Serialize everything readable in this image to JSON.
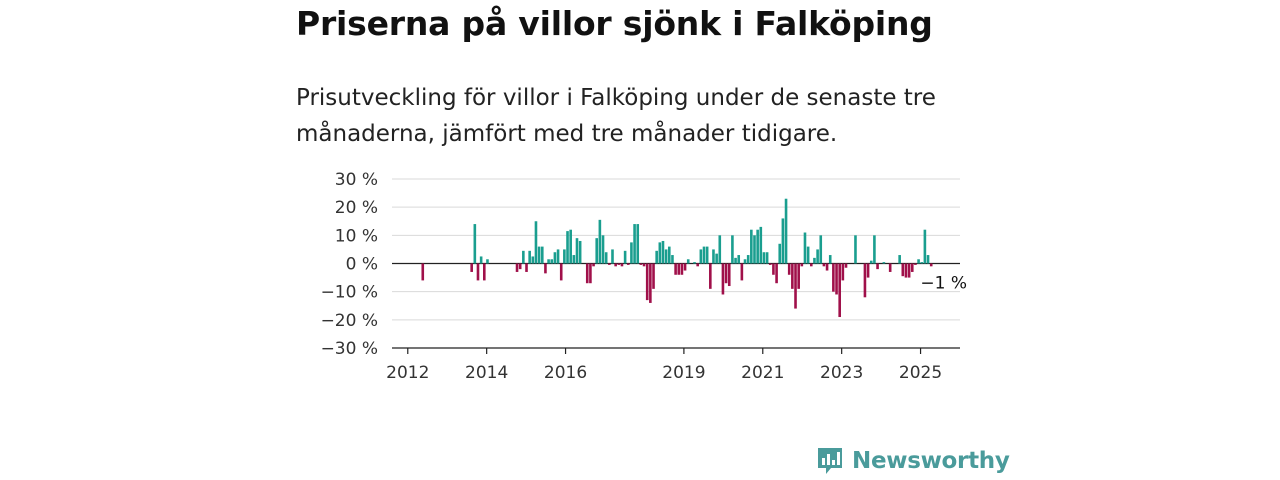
{
  "header": {
    "title": "Priserna på villor sjönk i Falköping",
    "subtitle": "Prisutveckling för villor i Falköping under de senaste tre månaderna, jämfört med tre månader tidigare."
  },
  "brand": {
    "name": "Newsworthy",
    "icon": "newsworthy-logo-icon",
    "color": "#4a9b9b"
  },
  "chart_data": {
    "type": "bar",
    "title": "",
    "xlabel": "",
    "ylabel": "",
    "ylim": [
      -30,
      30
    ],
    "y_ticks": [
      30,
      20,
      10,
      0,
      -10,
      -20,
      -30
    ],
    "y_tick_labels": [
      "30 %",
      "20 %",
      "10 %",
      "0 %",
      "−10 %",
      "−20 %",
      "−30 %"
    ],
    "xlim": [
      2011.6,
      2026.0
    ],
    "x_ticks": [
      2012,
      2014,
      2016,
      2019,
      2021,
      2023,
      2025
    ],
    "x_tick_labels": [
      "2012",
      "2014",
      "2016",
      "2019",
      "2021",
      "2023",
      "2025"
    ],
    "grid": "horizontal",
    "colors": {
      "positive": "#1a9e8f",
      "negative": "#a0104a"
    },
    "annotation": {
      "text": "−1 %",
      "x": 2025.3,
      "y": -1
    },
    "points": [
      [
        2012.38,
        -6
      ],
      [
        2013.62,
        -3
      ],
      [
        2013.7,
        14
      ],
      [
        2013.78,
        -6
      ],
      [
        2013.86,
        2.5
      ],
      [
        2013.94,
        -6
      ],
      [
        2014.02,
        1.5
      ],
      [
        2014.77,
        -3
      ],
      [
        2014.85,
        -2
      ],
      [
        2014.93,
        4.5
      ],
      [
        2015.01,
        -3
      ],
      [
        2015.09,
        4.5
      ],
      [
        2015.17,
        2.5
      ],
      [
        2015.25,
        15
      ],
      [
        2015.33,
        6
      ],
      [
        2015.41,
        6
      ],
      [
        2015.49,
        -3.5
      ],
      [
        2015.57,
        1.5
      ],
      [
        2015.65,
        1.5
      ],
      [
        2015.73,
        4
      ],
      [
        2015.81,
        5
      ],
      [
        2015.89,
        -6
      ],
      [
        2015.97,
        5
      ],
      [
        2016.05,
        11.5
      ],
      [
        2016.13,
        12
      ],
      [
        2016.21,
        3
      ],
      [
        2016.29,
        9
      ],
      [
        2016.37,
        8
      ],
      [
        2016.55,
        -7
      ],
      [
        2016.63,
        -7
      ],
      [
        2016.71,
        -1
      ],
      [
        2016.79,
        9
      ],
      [
        2016.87,
        15.5
      ],
      [
        2016.95,
        10
      ],
      [
        2017.03,
        4
      ],
      [
        2017.11,
        -0.5
      ],
      [
        2017.19,
        5
      ],
      [
        2017.27,
        -1
      ],
      [
        2017.35,
        -0.5
      ],
      [
        2017.43,
        -1
      ],
      [
        2017.51,
        4.5
      ],
      [
        2017.59,
        -0.5
      ],
      [
        2017.67,
        7.5
      ],
      [
        2017.75,
        14
      ],
      [
        2017.83,
        14
      ],
      [
        2017.91,
        -0.5
      ],
      [
        2017.99,
        -1
      ],
      [
        2018.07,
        -13
      ],
      [
        2018.15,
        -14
      ],
      [
        2018.23,
        -9
      ],
      [
        2018.31,
        4.5
      ],
      [
        2018.39,
        7.5
      ],
      [
        2018.47,
        8
      ],
      [
        2018.55,
        5
      ],
      [
        2018.63,
        6
      ],
      [
        2018.71,
        3
      ],
      [
        2018.79,
        -4
      ],
      [
        2018.87,
        -4
      ],
      [
        2018.95,
        -4
      ],
      [
        2019.03,
        -2.5
      ],
      [
        2019.11,
        1.5
      ],
      [
        2019.27,
        0.5
      ],
      [
        2019.35,
        -1
      ],
      [
        2019.43,
        5
      ],
      [
        2019.51,
        6
      ],
      [
        2019.59,
        6
      ],
      [
        2019.67,
        -9
      ],
      [
        2019.75,
        5
      ],
      [
        2019.83,
        3.5
      ],
      [
        2019.91,
        10
      ],
      [
        2019.99,
        -11
      ],
      [
        2020.07,
        -7
      ],
      [
        2020.15,
        -8
      ],
      [
        2020.23,
        10
      ],
      [
        2020.31,
        2
      ],
      [
        2020.39,
        3
      ],
      [
        2020.47,
        -6
      ],
      [
        2020.55,
        1.5
      ],
      [
        2020.63,
        3
      ],
      [
        2020.71,
        12
      ],
      [
        2020.79,
        10
      ],
      [
        2020.87,
        12
      ],
      [
        2020.95,
        13
      ],
      [
        2021.03,
        4
      ],
      [
        2021.11,
        4
      ],
      [
        2021.19,
        -0.5
      ],
      [
        2021.27,
        -4
      ],
      [
        2021.35,
        -7
      ],
      [
        2021.43,
        7
      ],
      [
        2021.51,
        16
      ],
      [
        2021.59,
        23
      ],
      [
        2021.67,
        -4
      ],
      [
        2021.75,
        -9
      ],
      [
        2021.83,
        -16
      ],
      [
        2021.91,
        -9
      ],
      [
        2021.99,
        -1
      ],
      [
        2022.07,
        11
      ],
      [
        2022.15,
        6
      ],
      [
        2022.23,
        -1
      ],
      [
        2022.31,
        2
      ],
      [
        2022.39,
        5
      ],
      [
        2022.47,
        10
      ],
      [
        2022.55,
        -1
      ],
      [
        2022.63,
        -2.5
      ],
      [
        2022.71,
        3
      ],
      [
        2022.79,
        -10
      ],
      [
        2022.87,
        -11
      ],
      [
        2022.95,
        -19
      ],
      [
        2023.03,
        -6
      ],
      [
        2023.11,
        -1.5
      ],
      [
        2023.35,
        10
      ],
      [
        2023.59,
        -12
      ],
      [
        2023.67,
        -5
      ],
      [
        2023.75,
        1
      ],
      [
        2023.83,
        10
      ],
      [
        2023.91,
        -2
      ],
      [
        2024.07,
        0.5
      ],
      [
        2024.23,
        -3
      ],
      [
        2024.47,
        3
      ],
      [
        2024.55,
        -4.5
      ],
      [
        2024.63,
        -5
      ],
      [
        2024.71,
        -5
      ],
      [
        2024.79,
        -3
      ],
      [
        2024.87,
        -0.5
      ],
      [
        2024.95,
        1.5
      ],
      [
        2025.03,
        0.5
      ],
      [
        2025.11,
        12
      ],
      [
        2025.19,
        3
      ],
      [
        2025.27,
        -1
      ]
    ]
  }
}
